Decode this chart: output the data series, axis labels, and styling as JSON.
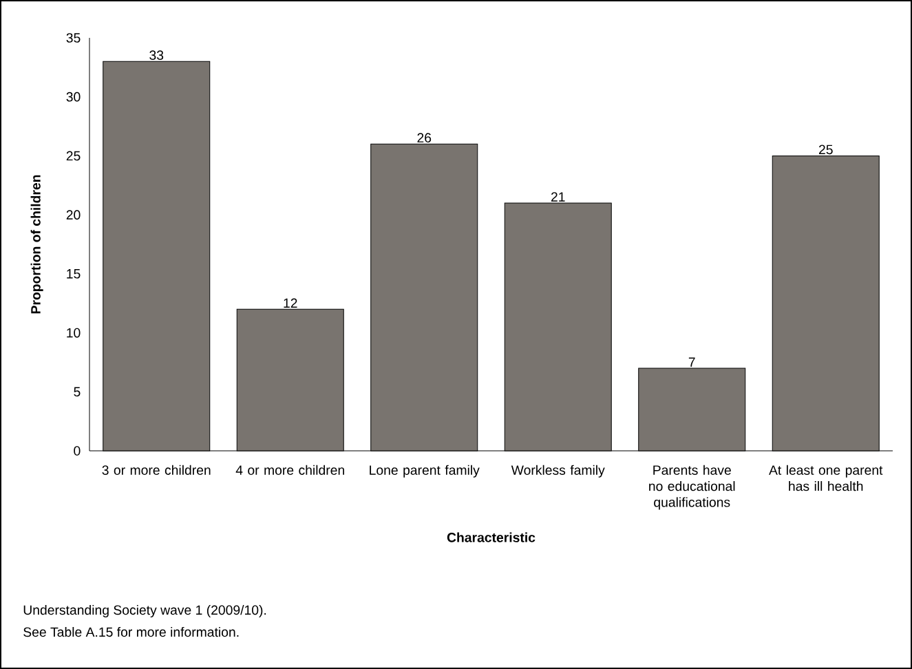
{
  "chart_data": {
    "type": "bar",
    "categories": [
      "3 or more children",
      "4 or more children",
      "Lone parent family",
      "Workless family",
      "Parents have no educational qualifications",
      "At least one parent has ill health"
    ],
    "values": [
      33,
      12,
      26,
      21,
      7,
      25
    ],
    "color": "#79746f",
    "xlabel": "Characteristic",
    "ylabel": "Proportion of children",
    "ylim": [
      0,
      35
    ],
    "yticks": [
      0,
      5,
      10,
      15,
      20,
      25,
      30,
      35
    ],
    "data_labels": true,
    "grid": false,
    "annotations": [
      "Understanding Society wave 1 (2009/10).",
      "See Table A.15 for more information."
    ]
  }
}
